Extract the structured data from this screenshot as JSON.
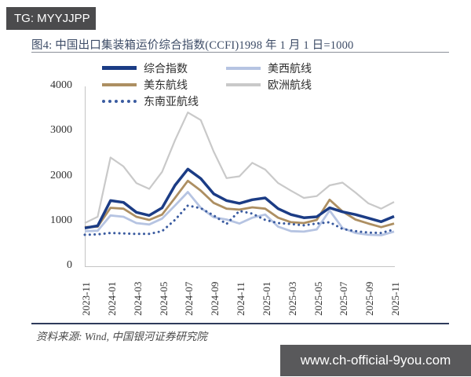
{
  "badges": {
    "top": "TG: MYYJJPP",
    "bottom": "www.ch-official-9you.com"
  },
  "figure": {
    "title": "图4: 中国出口集装箱运价综合指数(CCFI)1998 年 1 月 1 日=1000",
    "source_note": "资料来源: Wind, 中国银河证券研究院"
  },
  "colors": {
    "composite": "#1b3c85",
    "us_west": "#b6c4e2",
    "us_east": "#ad8f62",
    "europe": "#c9c9c9",
    "southeast_asia": "#3a5ba0",
    "badge_bg": "#4b4b4d",
    "title_text": "#3c4b66",
    "axis_line": "#c4c4c4",
    "footer_rule": "#2f3c5c"
  },
  "chart_data": {
    "type": "line",
    "title": "中国出口集装箱运价综合指数(CCFI)",
    "x_interval": "monthly",
    "x_range": [
      "2023-11",
      "2025-11"
    ],
    "x_tick_labels": [
      "2023-11",
      "2024-01",
      "2024-03",
      "2024-05",
      "2024-07",
      "2024-09",
      "2024-11",
      "2025-01",
      "2025-03",
      "2025-05",
      "2025-07",
      "2025-09",
      "2025-11"
    ],
    "ylim": [
      0,
      4000
    ],
    "yticks": [
      0,
      1000,
      2000,
      3000,
      4000
    ],
    "grid": false,
    "legend_position": "top",
    "legend_order": [
      0,
      1,
      2,
      3,
      4
    ],
    "draw_order": [
      3,
      1,
      2,
      4,
      0
    ],
    "series": [
      {
        "name": "综合指数",
        "color": "#1b3c85",
        "width": 3.5,
        "dotted": false,
        "values": [
          850,
          900,
          1460,
          1420,
          1200,
          1130,
          1300,
          1800,
          2160,
          1950,
          1610,
          1460,
          1400,
          1480,
          1520,
          1280,
          1150,
          1080,
          1100,
          1300,
          1210,
          1150,
          1070,
          990,
          1110
        ]
      },
      {
        "name": "美西航线",
        "color": "#b6c4e2",
        "width": 2.8,
        "dotted": false,
        "values": [
          780,
          790,
          1130,
          1100,
          960,
          930,
          1060,
          1350,
          1650,
          1300,
          1090,
          1040,
          950,
          1080,
          1150,
          880,
          780,
          770,
          820,
          1240,
          850,
          740,
          700,
          690,
          770
        ]
      },
      {
        "name": "美东航线",
        "color": "#ad8f62",
        "width": 2.8,
        "dotted": false,
        "values": [
          870,
          880,
          1300,
          1280,
          1100,
          1030,
          1150,
          1520,
          1900,
          1680,
          1410,
          1280,
          1260,
          1310,
          1280,
          1080,
          980,
          960,
          1030,
          1480,
          1220,
          1040,
          950,
          870,
          950
        ]
      },
      {
        "name": "欧洲航线",
        "color": "#c9c9c9",
        "width": 2.2,
        "dotted": false,
        "values": [
          960,
          1100,
          2420,
          2220,
          1850,
          1720,
          2100,
          2800,
          3420,
          3250,
          2550,
          1960,
          2000,
          2300,
          2150,
          1850,
          1680,
          1520,
          1560,
          1800,
          1860,
          1640,
          1400,
          1280,
          1430
        ]
      },
      {
        "name": "东南亚航线",
        "color": "#3a5ba0",
        "width": 3,
        "dotted": true,
        "values": [
          700,
          710,
          740,
          730,
          720,
          720,
          780,
          1030,
          1350,
          1290,
          1130,
          940,
          1230,
          1170,
          1030,
          960,
          940,
          910,
          950,
          980,
          830,
          780,
          750,
          740,
          820
        ]
      }
    ]
  }
}
